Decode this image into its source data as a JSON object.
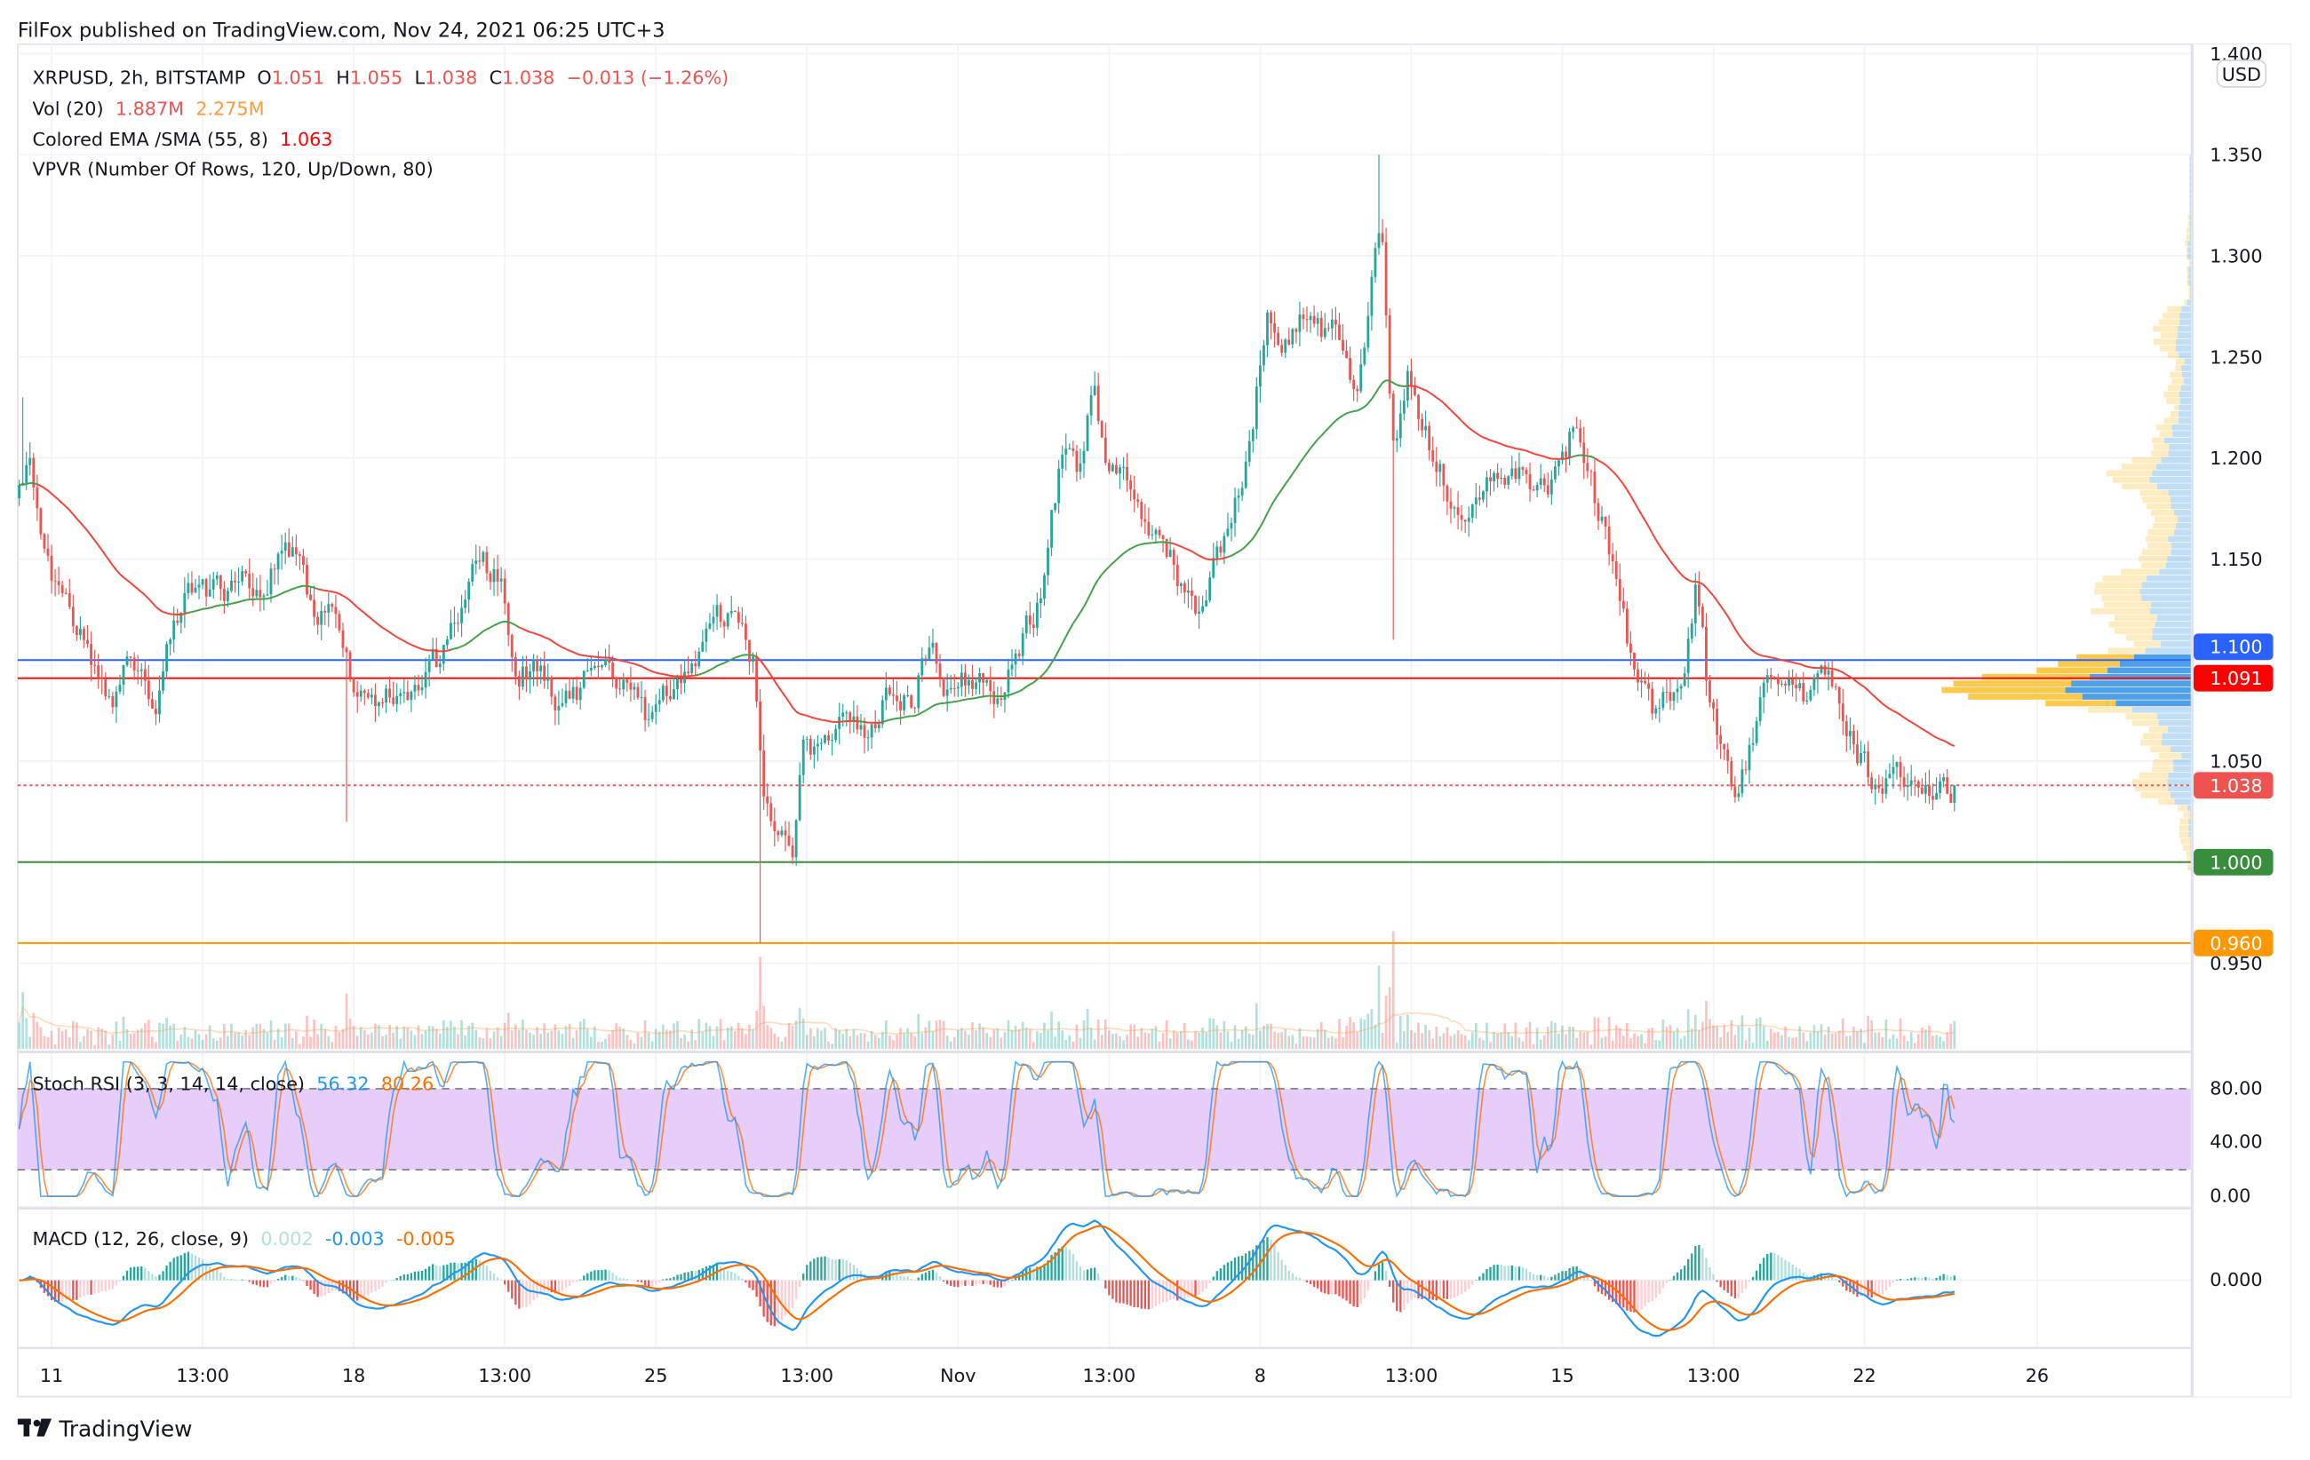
{
  "header": {
    "published": "FilFox published on TradingView.com, Nov 24, 2021 06:25 UTC+3"
  },
  "legend": {
    "symbol": "XRPUSD, 2h, BITSTAMP",
    "o_label": "O",
    "o": "1.051",
    "h_label": "H",
    "h": "1.055",
    "l_label": "L",
    "l": "1.038",
    "c_label": "C",
    "c": "1.038",
    "change": "−0.013 (−1.26%)",
    "vol_name": "Vol (20)",
    "vol1": "1.887M",
    "vol2": "2.275M",
    "ema_name": "Colored EMA /SMA (55, 8)",
    "ema_value": "1.063",
    "vpvr_name": "VPVR (Number Of Rows, 120, Up/Down, 80)",
    "stoch_name": "Stoch RSI (3, 3, 14, 14, close)",
    "stoch_k": "56.32",
    "stoch_d": "80.26",
    "macd_name": "MACD (12, 26, close, 9)",
    "macd_hist": "0.002",
    "macd_line": "-0.003",
    "macd_signal": "-0.005"
  },
  "price_axis": {
    "currency": "USD",
    "ticks": [
      "1.400",
      "1.350",
      "1.300",
      "1.250",
      "1.200",
      "1.150",
      "1.050",
      "0.950"
    ],
    "labels": [
      {
        "text": "1.100",
        "value": 1.1,
        "color": "#2962ff",
        "line": "solid"
      },
      {
        "text": "1.091",
        "value": 1.091,
        "color": "#ff0000",
        "line": "solid"
      },
      {
        "text": "1.038",
        "value": 1.038,
        "color": "#ef5350",
        "line": "dotted"
      },
      {
        "text": "1.000",
        "value": 1.0,
        "color": "#388e3c",
        "line": "solid"
      },
      {
        "text": "0.960",
        "value": 0.96,
        "color": "#ff9800",
        "line": "solid"
      }
    ]
  },
  "stoch_axis": [
    "80.00",
    "40.00",
    "0.00"
  ],
  "macd_axis": [
    "0.000"
  ],
  "footer": {
    "brand": "TradingView"
  },
  "colors": {
    "up": "#26a69a",
    "down": "#ef5350",
    "ema_up": "#43a047",
    "ema_down": "#f44336",
    "stoch_k": "#2196f3",
    "stoch_d": "#ff6d00",
    "vpvr_up": "#2f8ee0",
    "vpvr_down": "#fbc02d",
    "band": "#e6cdfa"
  },
  "chart_data": {
    "type": "candlestick",
    "symbol": "XRPUSD",
    "interval": "2h",
    "ylim": [
      0.93,
      1.4
    ],
    "x_unit": "days since Oct 11 2021",
    "time_ticks": [
      {
        "day": 0,
        "label": "11"
      },
      {
        "day": 3.5,
        "label": "13:00"
      },
      {
        "day": 7,
        "label": "18"
      },
      {
        "day": 10.5,
        "label": "13:00"
      },
      {
        "day": 14,
        "label": "25"
      },
      {
        "day": 17.5,
        "label": "13:00"
      },
      {
        "day": 21,
        "label": "Nov"
      },
      {
        "day": 24.5,
        "label": "13:00"
      },
      {
        "day": 28,
        "label": "8"
      },
      {
        "day": 31.5,
        "label": "13:00"
      },
      {
        "day": 35,
        "label": "15"
      },
      {
        "day": 38.5,
        "label": "13:00"
      },
      {
        "day": 42,
        "label": "22"
      },
      {
        "day": 46,
        "label": "26"
      }
    ],
    "close_path": [
      [
        -0.75,
        1.18
      ],
      [
        -0.51,
        1.19
      ],
      [
        -0.17,
        1.15
      ],
      [
        0.34,
        1.13
      ],
      [
        0.85,
        1.1
      ],
      [
        1.37,
        1.07
      ],
      [
        1.88,
        1.1
      ],
      [
        2.39,
        1.08
      ],
      [
        2.9,
        1.12
      ],
      [
        3.41,
        1.14
      ],
      [
        3.92,
        1.13
      ],
      [
        4.44,
        1.14
      ],
      [
        4.95,
        1.14
      ],
      [
        5.46,
        1.16
      ],
      [
        5.97,
        1.13
      ],
      [
        6.48,
        1.12
      ],
      [
        7.0,
        1.09
      ],
      [
        7.51,
        1.08
      ],
      [
        8.02,
        1.09
      ],
      [
        8.53,
        1.08
      ],
      [
        9.04,
        1.1
      ],
      [
        9.56,
        1.13
      ],
      [
        9.9,
        1.15
      ],
      [
        10.41,
        1.14
      ],
      [
        10.75,
        1.09
      ],
      [
        11.26,
        1.1
      ],
      [
        11.77,
        1.08
      ],
      [
        12.46,
        1.09
      ],
      [
        13.14,
        1.09
      ],
      [
        13.82,
        1.07
      ],
      [
        14.33,
        1.09
      ],
      [
        14.85,
        1.09
      ],
      [
        15.36,
        1.12
      ],
      [
        15.87,
        1.12
      ],
      [
        16.28,
        1.1
      ],
      [
        16.55,
        1.03
      ],
      [
        16.89,
        1.02
      ],
      [
        17.17,
        0.99
      ],
      [
        17.41,
        1.05
      ],
      [
        17.92,
        1.06
      ],
      [
        18.43,
        1.07
      ],
      [
        18.94,
        1.06
      ],
      [
        19.45,
        1.09
      ],
      [
        19.97,
        1.08
      ],
      [
        20.31,
        1.11
      ],
      [
        20.82,
        1.08
      ],
      [
        21.33,
        1.09
      ],
      [
        21.84,
        1.08
      ],
      [
        22.35,
        1.1
      ],
      [
        22.87,
        1.13
      ],
      [
        23.38,
        1.2
      ],
      [
        23.89,
        1.19
      ],
      [
        24.13,
        1.24
      ],
      [
        24.4,
        1.2
      ],
      [
        24.91,
        1.19
      ],
      [
        25.43,
        1.17
      ],
      [
        25.94,
        1.15
      ],
      [
        26.45,
        1.12
      ],
      [
        26.96,
        1.15
      ],
      [
        27.47,
        1.18
      ],
      [
        27.82,
        1.22
      ],
      [
        28.16,
        1.27
      ],
      [
        28.67,
        1.26
      ],
      [
        29.18,
        1.27
      ],
      [
        29.69,
        1.26
      ],
      [
        30.2,
        1.23
      ],
      [
        30.61,
        1.29
      ],
      [
        30.82,
        1.31
      ],
      [
        31.06,
        1.2
      ],
      [
        31.4,
        1.24
      ],
      [
        31.74,
        1.22
      ],
      [
        32.25,
        1.19
      ],
      [
        32.76,
        1.17
      ],
      [
        33.28,
        1.19
      ],
      [
        33.96,
        1.19
      ],
      [
        34.64,
        1.18
      ],
      [
        35.15,
        1.21
      ],
      [
        35.49,
        1.2
      ],
      [
        36.01,
        1.16
      ],
      [
        36.35,
        1.12
      ],
      [
        36.69,
        1.09
      ],
      [
        37.2,
        1.07
      ],
      [
        37.71,
        1.09
      ],
      [
        38.12,
        1.14
      ],
      [
        38.4,
        1.08
      ],
      [
        38.74,
        1.05
      ],
      [
        39.08,
        1.03
      ],
      [
        39.59,
        1.08
      ],
      [
        40.1,
        1.09
      ],
      [
        40.61,
        1.08
      ],
      [
        41.13,
        1.09
      ],
      [
        41.64,
        1.06
      ],
      [
        42.15,
        1.04
      ],
      [
        42.66,
        1.04
      ],
      [
        43.17,
        1.05
      ],
      [
        43.69,
        1.04
      ],
      [
        44.1,
        1.038
      ]
    ],
    "notable_wicks": [
      {
        "day": 30.75,
        "high": 1.35
      },
      {
        "day": 16.42,
        "low": 0.96
      },
      {
        "day": 6.86,
        "low": 1.02
      },
      {
        "day": 31.1,
        "low": 1.11
      },
      {
        "day": -0.7,
        "high": 1.23
      }
    ]
  }
}
